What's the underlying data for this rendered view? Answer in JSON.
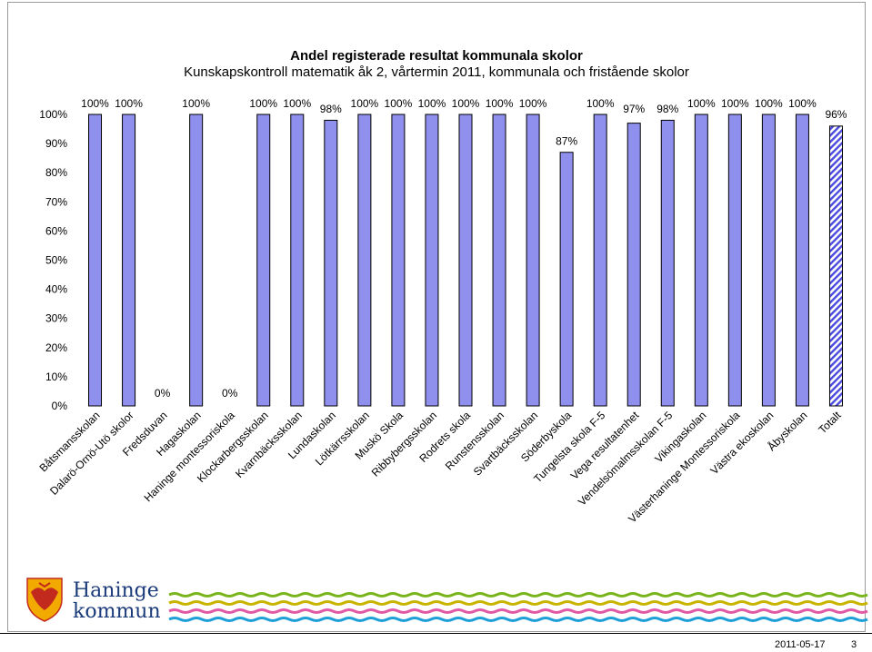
{
  "chart_data": {
    "type": "bar",
    "title": "Andel registerade resultat kommunala skolor",
    "subtitle": "Kunskapskontroll matematik åk 2, vårtermin 2011, kommunala och fristående skolor",
    "ylim": [
      0,
      100
    ],
    "yticks": [
      "0%",
      "10%",
      "20%",
      "30%",
      "40%",
      "50%",
      "60%",
      "70%",
      "80%",
      "90%",
      "100%"
    ],
    "categories": [
      "Båtsmansskolan",
      "Dalarö-Ornö-Utö skolor",
      "Fredsduvan",
      "Hagaskolan",
      "Haninge montessoriskola",
      "Klockarbergsskolan",
      "Kvarnbäcksskolan",
      "Lundaskolan",
      "Lötkärrsskolan",
      "Muskö Skola",
      "Ribbybergsskolan",
      "Rodrets skola",
      "Runstensskolan",
      "Svartbäcksskolan",
      "Söderbyskola",
      "Tungelsta skola F-5",
      "Vega resultatenhet",
      "Vendelsömalmsskolan F-5",
      "Vikingaskolan",
      "Västerhaninge Montessoriskola",
      "Västra ekoskolan",
      "Åbyskolan",
      "Totalt"
    ],
    "values": [
      100,
      100,
      0,
      100,
      0,
      100,
      100,
      98,
      100,
      100,
      100,
      100,
      100,
      100,
      87,
      100,
      97,
      98,
      100,
      100,
      100,
      100,
      96
    ],
    "data_labels": [
      "100%",
      "100%",
      "0%",
      "100%",
      "0%",
      "100%",
      "100%",
      "98%",
      "100%",
      "100%",
      "100%",
      "100%",
      "100%",
      "100%",
      "87%",
      "100%",
      "97%",
      "98%",
      "100%",
      "100%",
      "100%",
      "100%",
      "96%"
    ],
    "series_color": "#8f8fee",
    "total_color": "#4a4ae0",
    "xlabel": "",
    "ylabel": "",
    "grid": false
  },
  "logo": {
    "line1": "Haninge",
    "line2": "kommun"
  },
  "footer": {
    "date": "2011-05-17",
    "page": "3"
  }
}
